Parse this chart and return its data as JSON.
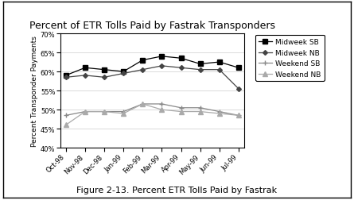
{
  "title": "Percent of ETR Tolls Paid by Fastrak Transponders",
  "caption": "Figure 2-13. Percent ETR Tolls Paid by Fastrak",
  "ylabel": "Percent Transponder Payments",
  "xlabels": [
    "Oct-98",
    "Nov-98",
    "Dec-98",
    "Jan-99",
    "Feb-99",
    "Mar-99",
    "Apr-99",
    "May-99",
    "Jun-99",
    "Jul-99"
  ],
  "ylim": [
    0.4,
    0.7
  ],
  "yticks": [
    0.4,
    0.45,
    0.5,
    0.55,
    0.6,
    0.65,
    0.7
  ],
  "series": {
    "Midweek SB": [
      0.59,
      0.61,
      0.605,
      0.6,
      0.63,
      0.64,
      0.635,
      0.62,
      0.625,
      0.61
    ],
    "Midweek NB": [
      0.585,
      0.59,
      0.585,
      0.595,
      0.605,
      0.615,
      0.61,
      0.605,
      0.605,
      0.555
    ],
    "Weekend SB": [
      0.485,
      0.495,
      0.495,
      0.495,
      0.515,
      0.515,
      0.505,
      0.505,
      0.495,
      0.485
    ],
    "Weekend NB": [
      0.46,
      0.495,
      0.495,
      0.49,
      0.515,
      0.5,
      0.495,
      0.495,
      0.49,
      0.485
    ]
  },
  "markers": {
    "Midweek SB": "s",
    "Midweek NB": "D",
    "Weekend SB": "+",
    "Weekend NB": "^"
  },
  "markersizes": {
    "Midweek SB": 4,
    "Midweek NB": 3,
    "Weekend SB": 5,
    "Weekend NB": 4
  },
  "colors": {
    "Midweek SB": "#000000",
    "Midweek NB": "#444444",
    "Weekend SB": "#888888",
    "Weekend NB": "#aaaaaa"
  },
  "background_color": "#ffffff",
  "title_fontsize": 9,
  "axis_fontsize": 6.5,
  "tick_fontsize": 6,
  "caption_fontsize": 8,
  "legend_fontsize": 6.5
}
